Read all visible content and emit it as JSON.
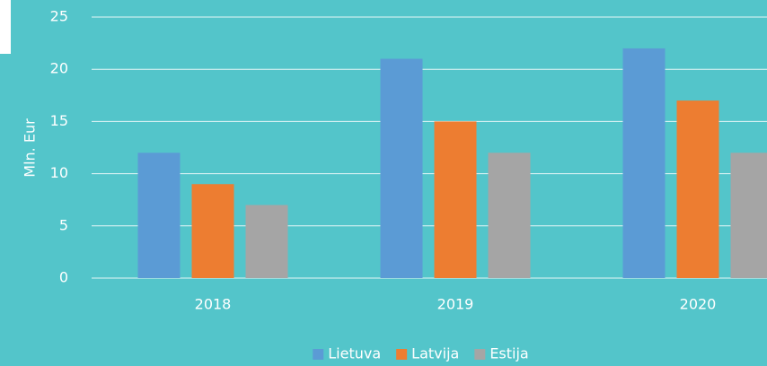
{
  "chart_data": {
    "type": "bar",
    "y_label": "Mln. Eur",
    "categories": [
      "2018",
      "2019",
      "2020"
    ],
    "series": [
      {
        "name": "Lietuva",
        "color": "#5b9bd5",
        "values": [
          12,
          21,
          22
        ]
      },
      {
        "name": "Latvija",
        "color": "#ed7d31",
        "values": [
          9,
          15,
          17
        ]
      },
      {
        "name": "Estija",
        "color": "#a5a5a5",
        "values": [
          7,
          12,
          12
        ]
      }
    ],
    "ylim": [
      0,
      25
    ],
    "yticks": [
      0,
      5,
      10,
      15,
      20,
      25
    ],
    "grid": true,
    "legend": "bottom"
  }
}
